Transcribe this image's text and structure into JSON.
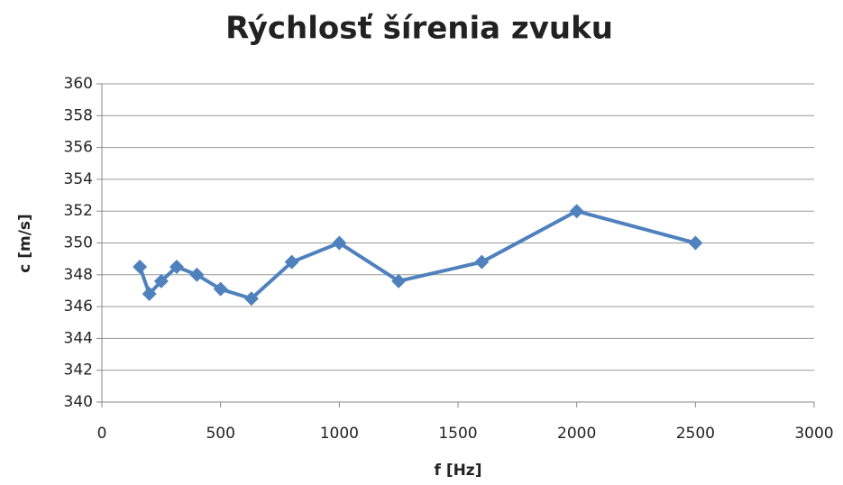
{
  "chart_data": {
    "type": "line",
    "title": "Rýchlosť šírenia zvuku",
    "x_label": "f [Hz]",
    "y_label": "c [m/s]",
    "x": [
      160,
      200,
      250,
      315,
      400,
      500,
      630,
      800,
      1000,
      1250,
      1600,
      2000,
      2500
    ],
    "series": [
      {
        "name": "c",
        "color": "#4f81bd",
        "values": [
          348.5,
          346.8,
          347.6,
          348.5,
          348.0,
          347.1,
          346.5,
          348.8,
          350.0,
          347.6,
          348.8,
          352.0,
          350.0
        ]
      }
    ],
    "xlim": [
      0,
      3000
    ],
    "xticks": [
      0,
      500,
      1000,
      1500,
      2000,
      2500,
      3000
    ],
    "ylim": [
      340,
      360
    ],
    "yticks": [
      340,
      342,
      344,
      346,
      348,
      350,
      352,
      354,
      356,
      358,
      360
    ],
    "grid": true
  }
}
